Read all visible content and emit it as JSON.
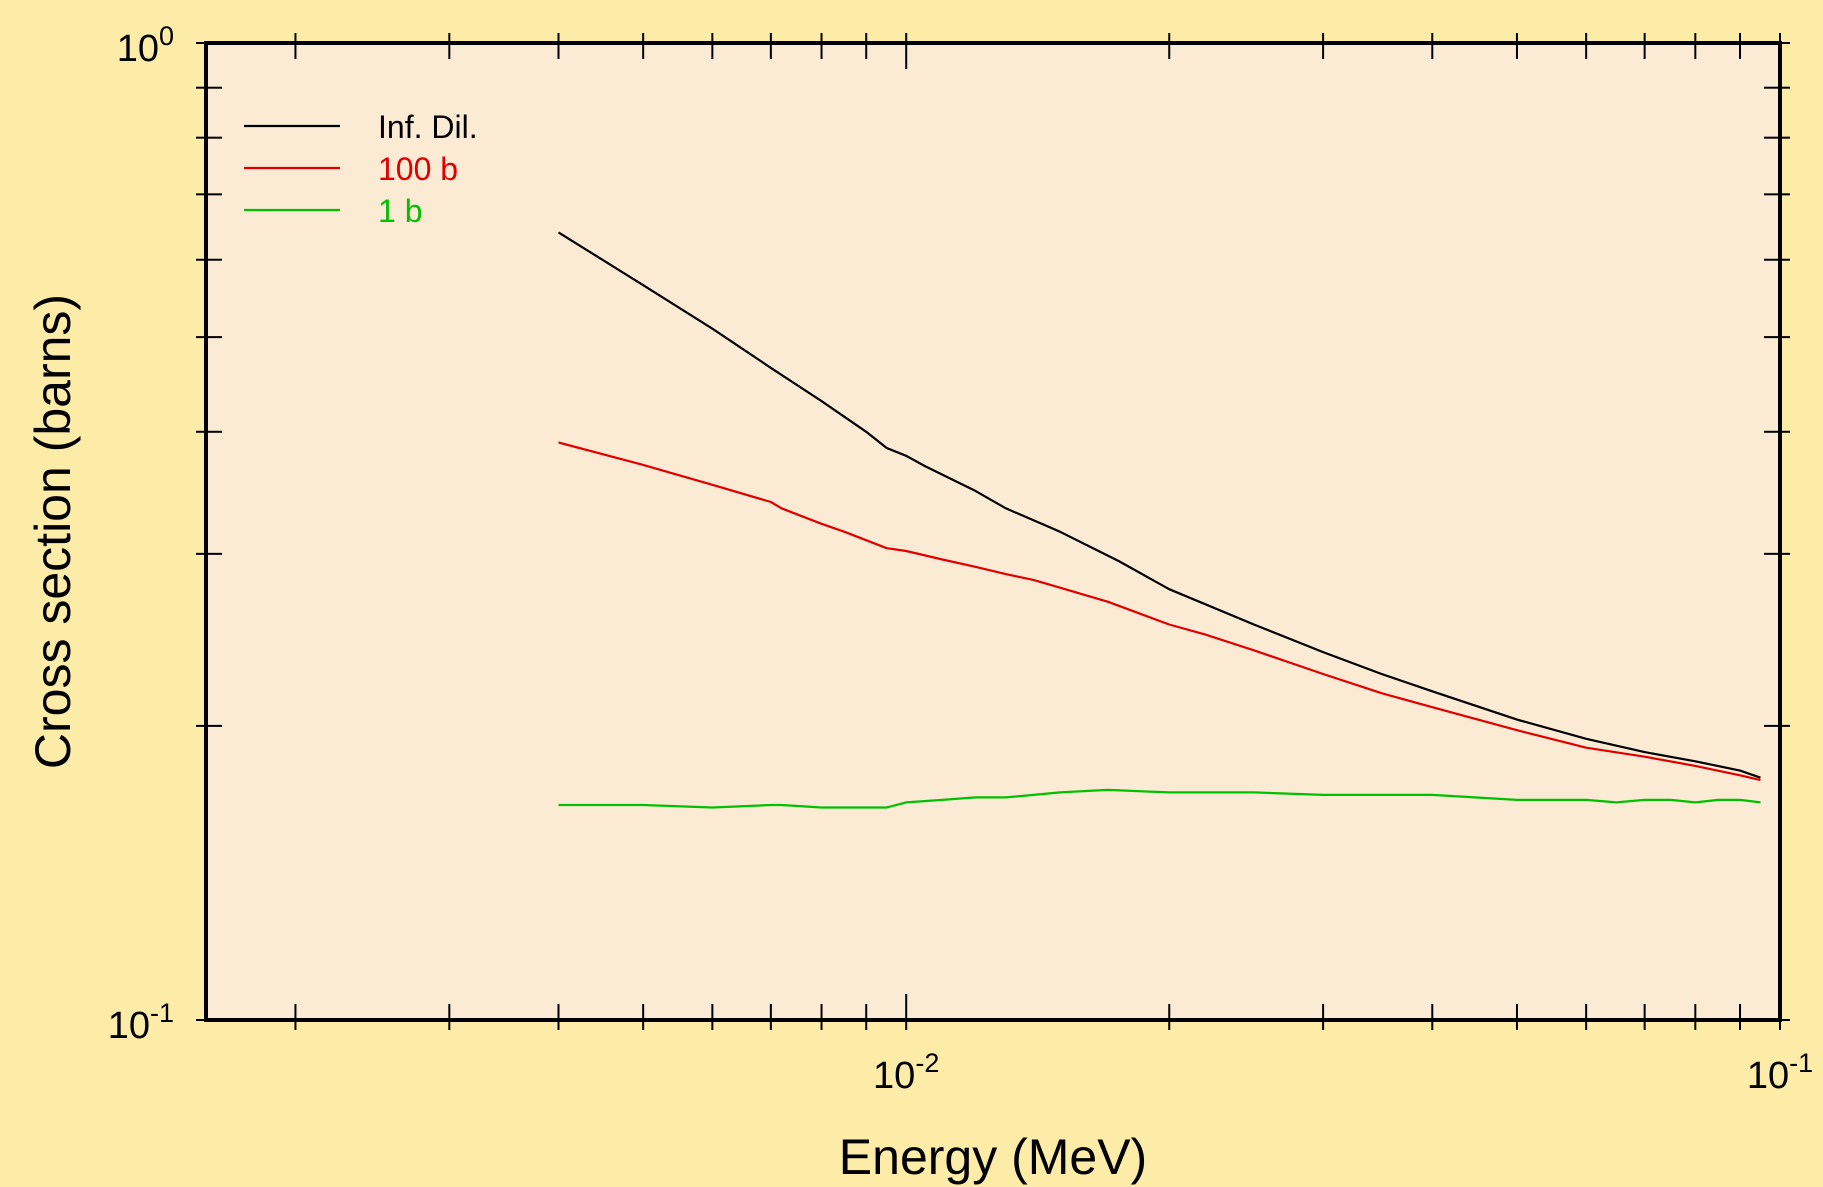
{
  "chart_data": {
    "type": "line",
    "title": "",
    "xlabel": "Energy (MeV)",
    "ylabel": "Cross section (barns)",
    "x_scale": "log",
    "y_scale": "log",
    "xlim": [
      0.00158,
      0.1
    ],
    "ylim": [
      0.1,
      1.0
    ],
    "grid": false,
    "legend_position": "top-left",
    "plot_background": "#fcebd4",
    "page_background": "#fdeba8",
    "x_ticks": [
      {
        "base": "10",
        "exp": "-2",
        "value": 0.01
      },
      {
        "base": "10",
        "exp": "-1",
        "value": 0.1
      }
    ],
    "y_ticks": [
      {
        "base": "10",
        "exp": "-1",
        "value": 0.1
      },
      {
        "base": "10",
        "exp": "0",
        "value": 1.0
      }
    ],
    "series": [
      {
        "name": "Inf. Dil.",
        "color": "#000000",
        "x": [
          0.004,
          0.005,
          0.006,
          0.007,
          0.008,
          0.009,
          0.0095,
          0.01,
          0.0105,
          0.012,
          0.013,
          0.015,
          0.0175,
          0.02,
          0.025,
          0.03,
          0.035,
          0.04,
          0.05,
          0.06,
          0.07,
          0.08,
          0.09,
          0.095
        ],
        "y": [
          0.64,
          0.565,
          0.51,
          0.465,
          0.43,
          0.4,
          0.385,
          0.378,
          0.369,
          0.348,
          0.334,
          0.316,
          0.295,
          0.276,
          0.254,
          0.238,
          0.226,
          0.217,
          0.203,
          0.194,
          0.188,
          0.184,
          0.18,
          0.177
        ]
      },
      {
        "name": "100 b",
        "color": "#e00000",
        "x": [
          0.004,
          0.005,
          0.006,
          0.007,
          0.0072,
          0.008,
          0.0085,
          0.0095,
          0.01,
          0.011,
          0.012,
          0.013,
          0.014,
          0.015,
          0.017,
          0.018,
          0.02,
          0.022,
          0.025,
          0.03,
          0.035,
          0.04,
          0.05,
          0.06,
          0.07,
          0.08,
          0.09,
          0.095
        ],
        "y": [
          0.39,
          0.37,
          0.353,
          0.339,
          0.334,
          0.322,
          0.316,
          0.304,
          0.302,
          0.296,
          0.291,
          0.286,
          0.282,
          0.277,
          0.268,
          0.263,
          0.254,
          0.248,
          0.239,
          0.226,
          0.216,
          0.209,
          0.198,
          0.19,
          0.186,
          0.182,
          0.178,
          0.176
        ]
      },
      {
        "name": "1 b",
        "color": "#00c000",
        "x": [
          0.004,
          0.005,
          0.006,
          0.007,
          0.0072,
          0.008,
          0.0085,
          0.009,
          0.0095,
          0.01,
          0.011,
          0.012,
          0.013,
          0.015,
          0.017,
          0.02,
          0.022,
          0.025,
          0.03,
          0.035,
          0.04,
          0.05,
          0.06,
          0.065,
          0.07,
          0.075,
          0.08,
          0.085,
          0.09,
          0.095
        ],
        "y": [
          0.166,
          0.166,
          0.165,
          0.166,
          0.166,
          0.165,
          0.165,
          0.165,
          0.165,
          0.167,
          0.168,
          0.169,
          0.169,
          0.171,
          0.172,
          0.171,
          0.171,
          0.171,
          0.17,
          0.17,
          0.17,
          0.168,
          0.168,
          0.167,
          0.168,
          0.168,
          0.167,
          0.168,
          0.168,
          0.167
        ]
      }
    ]
  }
}
